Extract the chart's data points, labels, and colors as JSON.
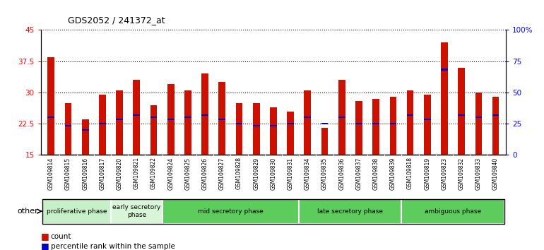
{
  "title": "GDS2052 / 241372_at",
  "samples": [
    "GSM109814",
    "GSM109815",
    "GSM109816",
    "GSM109817",
    "GSM109820",
    "GSM109821",
    "GSM109822",
    "GSM109824",
    "GSM109825",
    "GSM109826",
    "GSM109827",
    "GSM109828",
    "GSM109829",
    "GSM109830",
    "GSM109831",
    "GSM109834",
    "GSM109835",
    "GSM109836",
    "GSM109837",
    "GSM109838",
    "GSM109839",
    "GSM109818",
    "GSM109819",
    "GSM109823",
    "GSM109832",
    "GSM109833",
    "GSM109840"
  ],
  "count_values": [
    38.5,
    27.5,
    23.5,
    29.5,
    30.5,
    33.0,
    27.0,
    32.0,
    30.5,
    34.5,
    32.5,
    27.5,
    27.5,
    26.5,
    25.5,
    30.5,
    21.5,
    33.0,
    28.0,
    28.5,
    29.0,
    30.5,
    29.5,
    42.0,
    36.0,
    30.0,
    29.0
  ],
  "percentile_values": [
    24.0,
    22.0,
    21.0,
    22.5,
    23.5,
    24.5,
    24.0,
    23.5,
    24.0,
    24.5,
    23.5,
    22.5,
    22.0,
    22.0,
    22.5,
    24.0,
    22.5,
    24.0,
    22.5,
    22.5,
    22.5,
    24.5,
    23.5,
    35.5,
    24.5,
    24.0,
    24.5
  ],
  "phases": [
    {
      "label": "proliferative phase",
      "start": 0,
      "end": 4,
      "color": "#c8f0c8"
    },
    {
      "label": "early secretory\nphase",
      "start": 4,
      "end": 7,
      "color": "#d8f5d8"
    },
    {
      "label": "mid secretory phase",
      "start": 7,
      "end": 15,
      "color": "#5ccc5c"
    },
    {
      "label": "late secretory phase",
      "start": 15,
      "end": 21,
      "color": "#5ccc5c"
    },
    {
      "label": "ambiguous phase",
      "start": 21,
      "end": 27,
      "color": "#5ccc5c"
    }
  ],
  "ylim_left": [
    15,
    45
  ],
  "ylim_right": [
    0,
    100
  ],
  "yticks_left": [
    15,
    22.5,
    30,
    37.5,
    45
  ],
  "yticks_right": [
    0,
    25,
    50,
    75,
    100
  ],
  "ytick_labels_left": [
    "15",
    "22.5",
    "30",
    "37.5",
    "45"
  ],
  "ytick_labels_right": [
    "0",
    "25",
    "50",
    "75",
    "100%"
  ],
  "bar_color": "#cc1100",
  "percentile_color": "#0000cc",
  "plot_bg": "#ffffff",
  "tick_area_bg": "#cccccc",
  "bar_width": 0.4
}
